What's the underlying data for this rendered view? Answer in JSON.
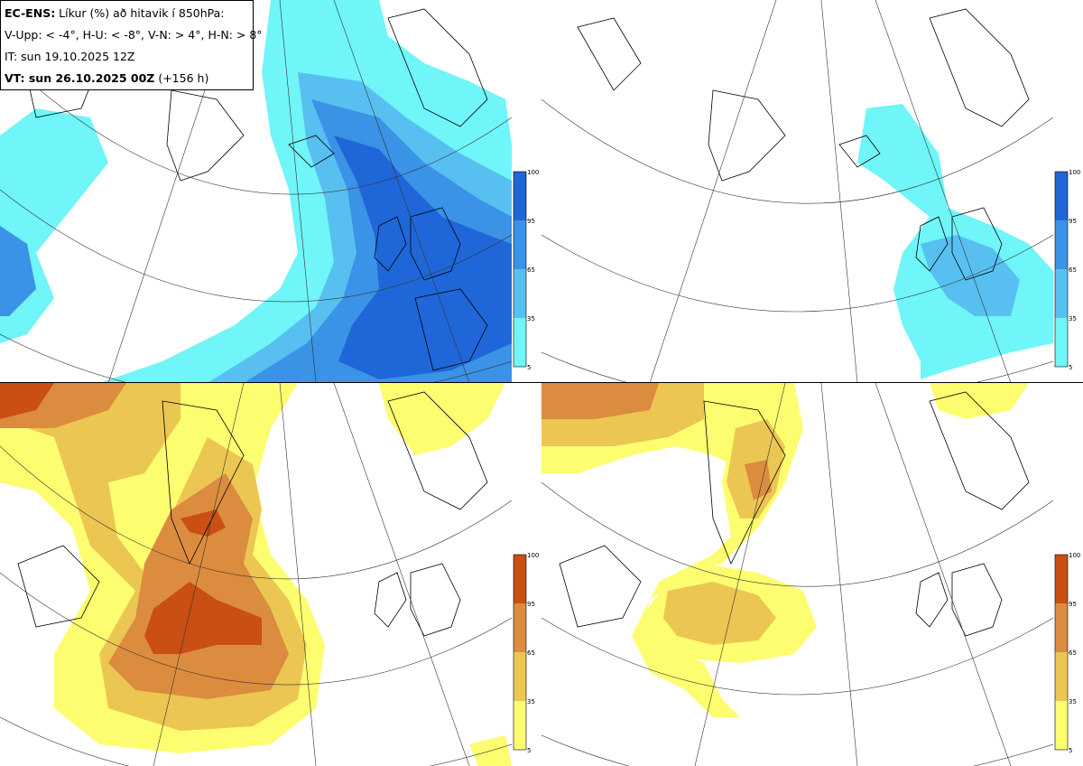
{
  "info": {
    "line1_bold": "EC-ENS:",
    "line1_rest": " Líkur (%) að hitavik í 850hPa:",
    "line2": "V-Upp: < -4°, H-U: < -8°, V-N: > 4°, H-N: > 8°",
    "line3": "IT: sun 19.10.2025 12Z",
    "line4_bold": "VT: sun 26.10.2025 00Z",
    "line4_rest": " (+156 h)"
  },
  "colorbar": {
    "ticks": [
      "100",
      "95",
      "65",
      "35",
      "5"
    ],
    "cold_colors": [
      "#1f67d8",
      "#3a93e6",
      "#58c0f0",
      "#70f5f8"
    ],
    "warm_colors": [
      "#c94f12",
      "#dc8c3e",
      "#ecc652",
      "#fdfd70"
    ]
  },
  "panels": [
    {
      "id": "V-Upp",
      "scheme": "cold"
    },
    {
      "id": "H-U",
      "scheme": "cold"
    },
    {
      "id": "V-N",
      "scheme": "warm"
    },
    {
      "id": "H-N",
      "scheme": "warm"
    }
  ]
}
